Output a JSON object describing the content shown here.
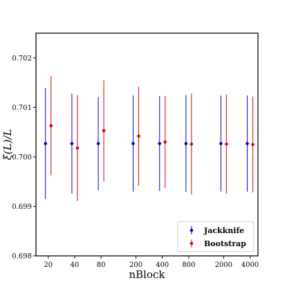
{
  "chart_data": {
    "type": "scatter",
    "subtype": "errorbar",
    "xscale": "log",
    "xlabel": "nBlock",
    "ylabel": "ξ(L)/L",
    "ylim": [
      0.698,
      0.7025
    ],
    "x_ticks": [
      20,
      40,
      80,
      200,
      400,
      800,
      2000,
      4000
    ],
    "x_tick_labels": [
      "20",
      "40",
      "80",
      "200",
      "400",
      "800",
      "2000",
      "4000"
    ],
    "y_ticks": [
      0.698,
      0.699,
      0.7,
      0.701,
      0.702
    ],
    "y_tick_labels": [
      "0.698",
      "0.699",
      "0.700",
      "0.701",
      "0.702"
    ],
    "grid": false,
    "legend_position": "lower-right",
    "series": [
      {
        "name": "Jackknife",
        "color": "#0000cc",
        "offset": "left",
        "points": [
          {
            "x": 20,
            "y": 0.70027,
            "err": 0.00112
          },
          {
            "x": 40,
            "y": 0.70027,
            "err": 0.00101
          },
          {
            "x": 80,
            "y": 0.70027,
            "err": 0.00094
          },
          {
            "x": 200,
            "y": 0.70027,
            "err": 0.00097
          },
          {
            "x": 400,
            "y": 0.70027,
            "err": 0.00096
          },
          {
            "x": 800,
            "y": 0.70027,
            "err": 0.00098
          },
          {
            "x": 2000,
            "y": 0.70027,
            "err": 0.00097
          },
          {
            "x": 4000,
            "y": 0.70027,
            "err": 0.00097
          }
        ]
      },
      {
        "name": "Bootstrap",
        "color": "#dd0000",
        "offset": "right",
        "points": [
          {
            "x": 20,
            "y": 0.70063,
            "err": 0.001
          },
          {
            "x": 40,
            "y": 0.70018,
            "err": 0.00107
          },
          {
            "x": 80,
            "y": 0.70053,
            "err": 0.00102
          },
          {
            "x": 200,
            "y": 0.70042,
            "err": 0.001
          },
          {
            "x": 400,
            "y": 0.7003,
            "err": 0.00093
          },
          {
            "x": 800,
            "y": 0.70026,
            "err": 0.00102
          },
          {
            "x": 2000,
            "y": 0.70026,
            "err": 0.001
          },
          {
            "x": 4000,
            "y": 0.70025,
            "err": 0.00097
          }
        ]
      }
    ]
  }
}
